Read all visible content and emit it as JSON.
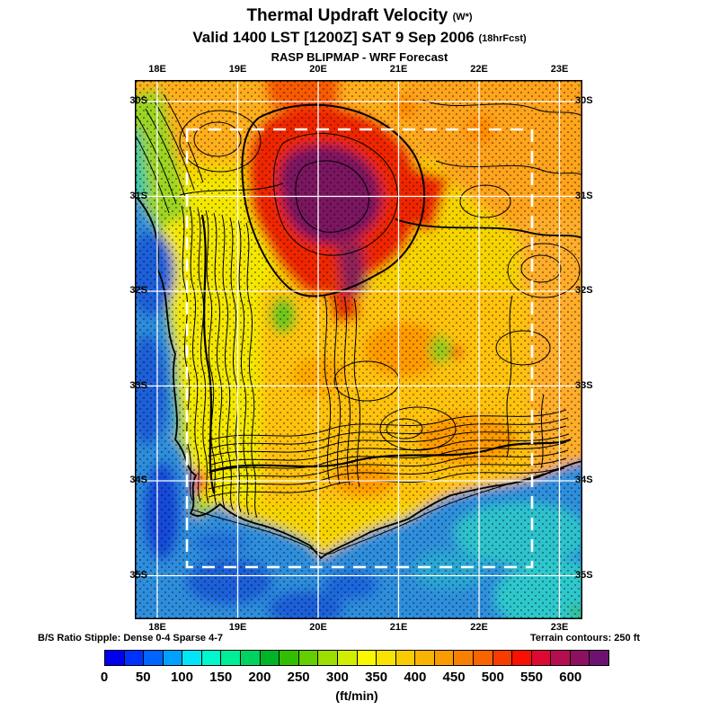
{
  "header": {
    "title": "Thermal Updraft Velocity",
    "title_suffix": "(W*)",
    "valid_line": "Valid 1400 LST [1200Z] SAT 9 Sep 2006",
    "valid_suffix": "(18hrFcst)",
    "model_line": "RASP BLIPMAP - WRF Forecast"
  },
  "map": {
    "axes": {
      "top": [
        "18E",
        "19E",
        "20E",
        "21E",
        "22E",
        "23E"
      ],
      "bottom": [
        "18E",
        "19E",
        "20E",
        "21E",
        "22E",
        "23E"
      ],
      "left": [
        "30S",
        "31S",
        "32S",
        "33S",
        "34S",
        "35S"
      ],
      "right": [
        "30S",
        "31S",
        "32S",
        "33S",
        "34S",
        "35S"
      ]
    }
  },
  "footnotes": {
    "stipple": "B/S Ratio Stipple: Dense  0-4   Sparse  4-7",
    "terrain": "Terrain contours: 250 ft"
  },
  "colorbar": {
    "unit_label": "(ft/min)",
    "tick_labels": [
      "0",
      "50",
      "100",
      "150",
      "200",
      "250",
      "300",
      "350",
      "400",
      "450",
      "500",
      "550",
      "600"
    ],
    "tick_step": 50,
    "cell_step": 25,
    "cell_colors": [
      "#0000EE",
      "#0032FE",
      "#0064FE",
      "#00A0FE",
      "#00E6F6",
      "#00F8CC",
      "#00EE96",
      "#00D260",
      "#00B428",
      "#32BE00",
      "#64CE00",
      "#9CDE00",
      "#D2EE00",
      "#F8F800",
      "#F8E400",
      "#F8CC00",
      "#F8B400",
      "#F89C00",
      "#F88000",
      "#F86400",
      "#F83C00",
      "#F81000",
      "#DC0A32",
      "#B40E50",
      "#8C1060",
      "#6E1272"
    ]
  }
}
